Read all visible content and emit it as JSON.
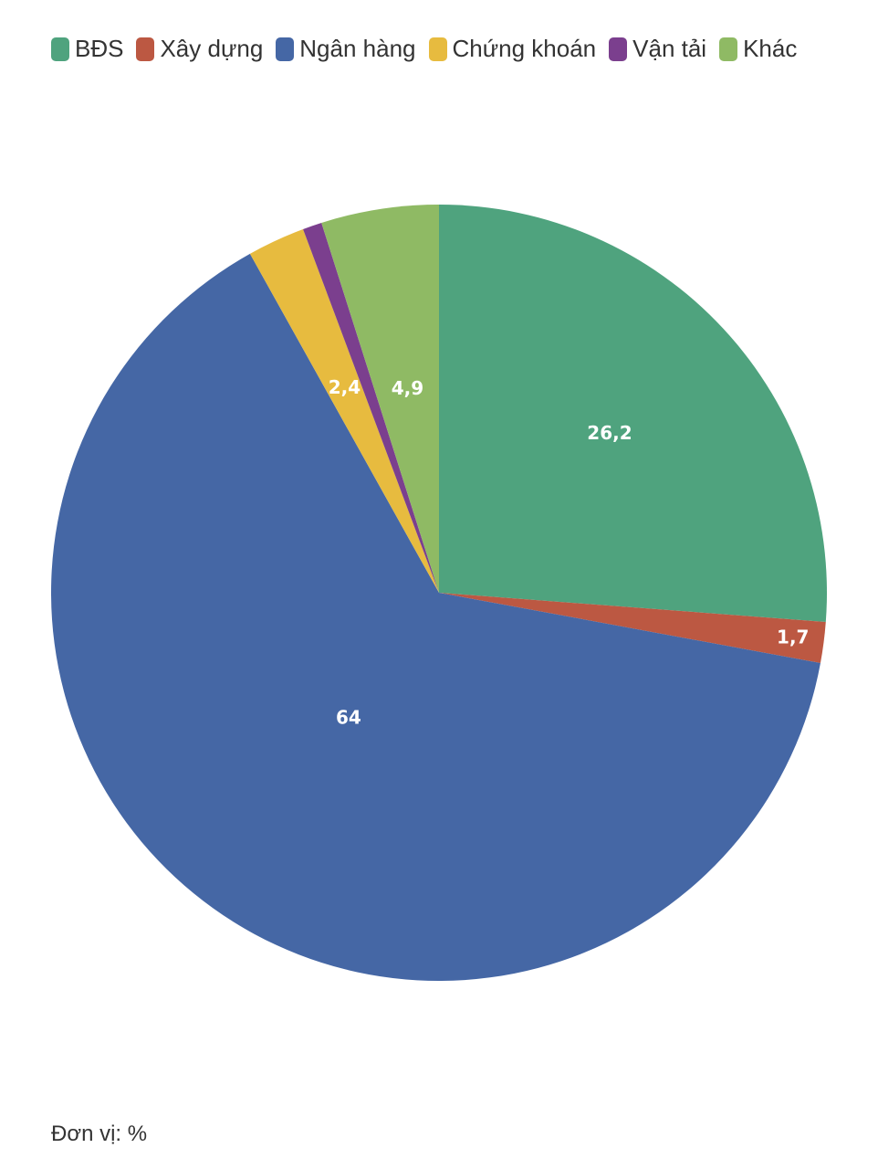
{
  "chart_data": {
    "type": "pie",
    "title": "",
    "categories": [
      "BĐS",
      "Xây dựng",
      "Ngân hàng",
      "Chứng khoán",
      "Vận tải",
      "Khác"
    ],
    "values": [
      26.2,
      1.7,
      64,
      2.4,
      0.8,
      4.9
    ],
    "value_labels": [
      "26,2",
      "1,7",
      "64",
      "2,4",
      "",
      "4,9"
    ],
    "colors": [
      "#4fa37e",
      "#bc5842",
      "#4567a5",
      "#e7bb3f",
      "#7b3f8e",
      "#8fba64"
    ],
    "start_angle_deg": 0,
    "direction": "clockwise",
    "legend_position": "top-left"
  },
  "footer": {
    "unit": "Đơn vị: %"
  }
}
